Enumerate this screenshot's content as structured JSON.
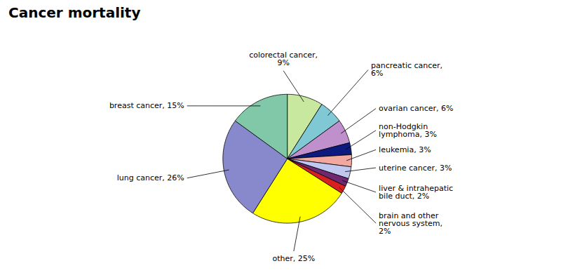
{
  "chart_data": {
    "type": "pie",
    "title": "Cancer mortality",
    "categories": [
      "colorectal cancer,\n9%",
      "pancreatic cancer,\n6%",
      "ovarian cancer, 6%",
      "non-Hodgkin\nlymphoma, 3%",
      "leukemia, 3%",
      "uterine cancer, 3%",
      "liver & intrahepatic\nbile duct, 2%",
      "brain and other\nnervous system,\n2%",
      "other, 25%",
      "lung cancer, 26%",
      "breast cancer, 15%"
    ],
    "values": [
      9,
      6,
      6,
      3,
      3,
      3,
      2,
      2,
      25,
      26,
      15
    ],
    "colors": [
      "#C8E8A0",
      "#80C8D4",
      "#C090CC",
      "#0C1A80",
      "#F0A8A0",
      "#C0C8F0",
      "#702870",
      "#D82020",
      "#FFFF00",
      "#8888CC",
      "#80C8A8"
    ]
  }
}
